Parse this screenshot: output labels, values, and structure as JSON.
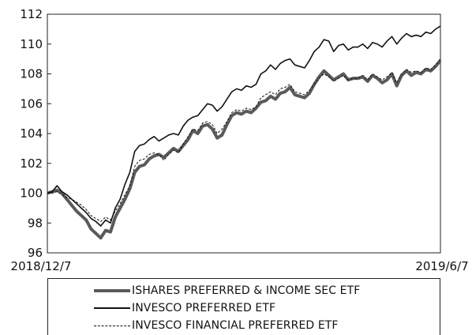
{
  "chart_data": {
    "type": "line",
    "x_start_label": "2018/12/7",
    "x_end_label": "2019/6/7",
    "ylim": [
      96,
      112
    ],
    "yticks": [
      96,
      98,
      100,
      102,
      104,
      106,
      108,
      110,
      112
    ],
    "grid": false,
    "legend_position": "bottom",
    "series": [
      {
        "name": "ISHARES PREFERRED & INCOME SEC ETF",
        "color": "#5a5a5a",
        "style": "thick",
        "values": [
          100.0,
          100.1,
          100.2,
          100.0,
          99.6,
          99.2,
          98.8,
          98.5,
          98.2,
          97.6,
          97.3,
          97.0,
          97.5,
          97.4,
          98.4,
          99.0,
          99.6,
          100.3,
          101.4,
          101.8,
          101.9,
          102.3,
          102.5,
          102.6,
          102.4,
          102.7,
          103.0,
          102.8,
          103.2,
          103.6,
          104.2,
          104.0,
          104.5,
          104.6,
          104.3,
          103.7,
          103.9,
          104.6,
          105.2,
          105.4,
          105.3,
          105.5,
          105.4,
          105.7,
          106.1,
          106.2,
          106.5,
          106.3,
          106.7,
          106.8,
          107.1,
          106.6,
          106.5,
          106.4,
          106.7,
          107.3,
          107.8,
          108.2,
          107.9,
          107.6,
          107.8,
          108.0,
          107.6,
          107.7,
          107.7,
          107.8,
          107.5,
          107.9,
          107.7,
          107.4,
          107.6,
          108.0,
          107.2,
          107.9,
          108.2,
          107.9,
          108.1,
          108.0,
          108.3,
          108.2,
          108.5,
          108.9
        ]
      },
      {
        "name": "INVESCO PREFERRED ETF",
        "color": "#111111",
        "style": "solid",
        "values": [
          100.0,
          100.1,
          100.5,
          100.1,
          99.9,
          99.6,
          99.3,
          99.0,
          98.7,
          98.3,
          98.1,
          97.8,
          98.2,
          98.0,
          99.0,
          99.6,
          100.6,
          101.4,
          102.8,
          103.2,
          103.3,
          103.6,
          103.8,
          103.5,
          103.7,
          103.9,
          104.0,
          103.9,
          104.5,
          104.9,
          105.1,
          105.2,
          105.6,
          106.0,
          105.9,
          105.5,
          105.8,
          106.3,
          106.8,
          107.0,
          106.9,
          107.2,
          107.1,
          107.3,
          108.0,
          108.2,
          108.6,
          108.3,
          108.7,
          108.9,
          109.0,
          108.6,
          108.5,
          108.4,
          108.9,
          109.5,
          109.8,
          110.3,
          110.2,
          109.5,
          109.9,
          110.0,
          109.6,
          109.8,
          109.8,
          110.0,
          109.7,
          110.1,
          110.0,
          109.8,
          110.2,
          110.5,
          110.0,
          110.4,
          110.7,
          110.5,
          110.6,
          110.5,
          110.8,
          110.7,
          111.0,
          111.2
        ]
      },
      {
        "name": "INVESCO FINANCIAL PREFERRED ETF",
        "color": "#111111",
        "style": "dashed",
        "values": [
          100.0,
          100.0,
          100.1,
          99.9,
          99.7,
          99.6,
          99.4,
          99.2,
          98.9,
          98.5,
          98.3,
          98.1,
          98.4,
          98.2,
          98.8,
          99.3,
          99.9,
          100.5,
          101.8,
          102.2,
          102.3,
          102.6,
          102.7,
          102.6,
          102.2,
          102.6,
          102.9,
          102.7,
          103.3,
          103.8,
          104.3,
          104.2,
          104.7,
          104.8,
          104.6,
          104.0,
          104.3,
          104.8,
          105.4,
          105.6,
          105.5,
          105.7,
          105.6,
          105.8,
          106.4,
          106.6,
          106.8,
          106.6,
          107.0,
          107.1,
          107.3,
          106.8,
          106.7,
          106.6,
          106.9,
          107.3,
          107.7,
          108.0,
          107.8,
          107.5,
          107.7,
          107.9,
          107.6,
          107.7,
          107.7,
          107.9,
          107.6,
          108.0,
          107.8,
          107.6,
          107.8,
          108.1,
          107.4,
          108.0,
          108.3,
          108.1,
          108.2,
          108.1,
          108.4,
          108.3,
          108.6,
          109.0
        ]
      }
    ]
  }
}
